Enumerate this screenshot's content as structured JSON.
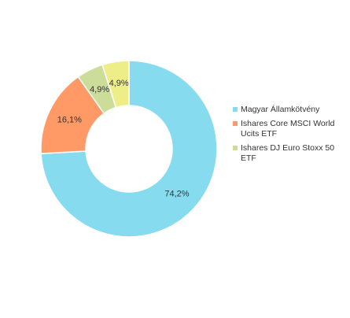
{
  "chart_data": {
    "type": "pie",
    "donut": true,
    "legend_position": "right",
    "series": [
      {
        "name": "Magyar Államkötvény",
        "value": 74.2,
        "label": "74,2%",
        "color": "#87dbef"
      },
      {
        "name": "Ishares Core MSCI World Ucits ETF",
        "value": 16.1,
        "label": "16,1%",
        "color": "#ff9966"
      },
      {
        "name": "Ishares DJ Euro Stoxx 50 ETF",
        "value": 4.9,
        "label": "4,9%",
        "color": "#ccdd99"
      },
      {
        "name": "",
        "value": 4.9,
        "label": "4,9%",
        "color": "#eeee88"
      }
    ]
  }
}
